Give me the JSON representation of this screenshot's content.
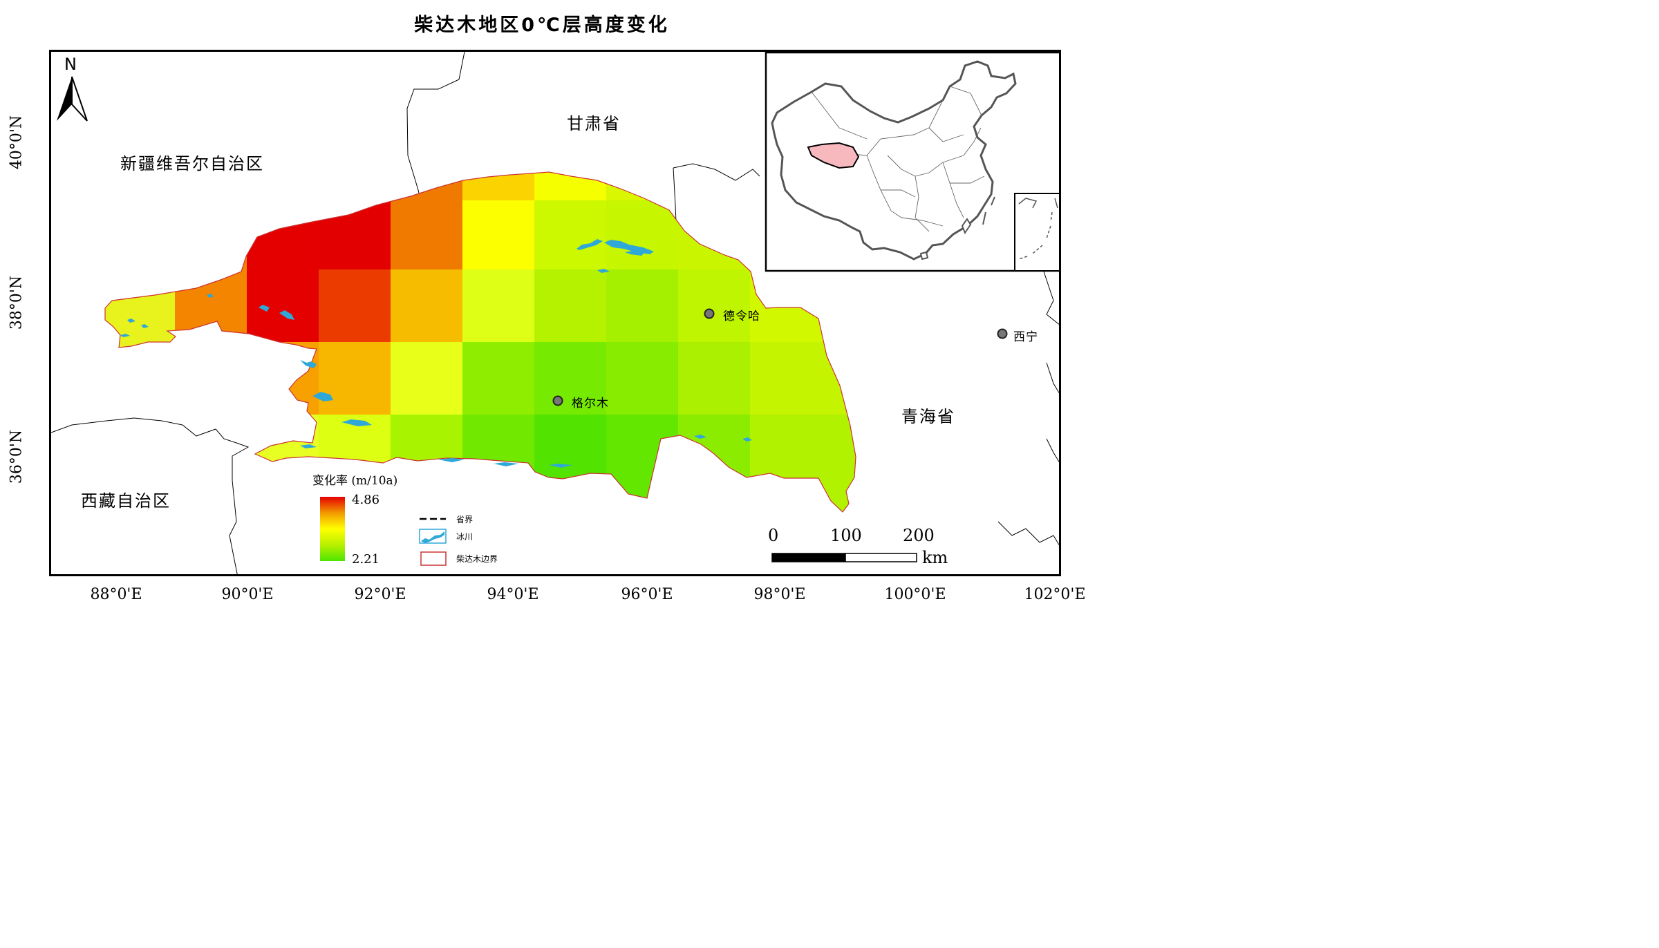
{
  "title": "柴达木地区0℃层高度变化",
  "x_ticks": [
    {
      "label": "88°0'E"
    },
    {
      "label": "90°0'E"
    },
    {
      "label": "92°0'E"
    },
    {
      "label": "94°0'E"
    },
    {
      "label": "96°0'E"
    },
    {
      "label": "98°0'E"
    },
    {
      "label": "100°0'E"
    },
    {
      "label": "102°0'E"
    }
  ],
  "y_ticks": [
    {
      "label": "40°0'N"
    },
    {
      "label": "38°0'N"
    },
    {
      "label": "36°0'N"
    }
  ],
  "regions": {
    "xinjiang": "新疆维吾尔自治区",
    "gansu": "甘肃省",
    "tibet": "西藏自治区",
    "qinghai": "青海省"
  },
  "cities": {
    "delingha": "德令哈",
    "golmud": "格尔木",
    "xining": "西宁"
  },
  "north_arrow": "N",
  "legend": {
    "rate_title": "变化率 (m/10a)",
    "rate_max": "4.86",
    "rate_min": "2.21",
    "province_boundary": "省界",
    "glacier": "冰川",
    "basin_boundary": "柴达木边界"
  },
  "scale_bar": {
    "labels": [
      "0",
      "100",
      "200"
    ],
    "unit": "km"
  },
  "colors": {
    "high": "#e50000",
    "mid": "#ffff00",
    "low": "#4de600",
    "glacier": "#2ea8d8",
    "basin_outline": "#cc3333",
    "inset_highlight": "#f7b9bd"
  },
  "grid_values_note": ""
}
